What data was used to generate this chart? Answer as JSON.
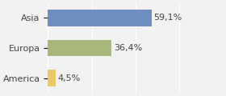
{
  "categories": [
    "America",
    "Europa",
    "Asia"
  ],
  "values": [
    4.5,
    36.4,
    59.1
  ],
  "bar_colors": [
    "#e8c96a",
    "#a8b87c",
    "#6e8ebf"
  ],
  "labels": [
    "4,5%",
    "36,4%",
    "59,1%"
  ],
  "xlim": [
    0,
    100
  ],
  "background_color": "#f2f2f2",
  "bar_height": 0.55,
  "label_fontsize": 8.0,
  "ytick_fontsize": 8.0
}
